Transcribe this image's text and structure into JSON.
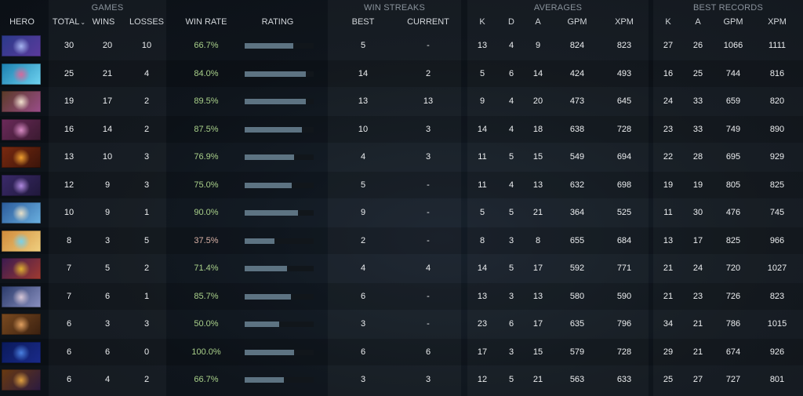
{
  "groups": {
    "games": "GAMES",
    "win_streaks": "WIN STREAKS",
    "averages": "AVERAGES",
    "best_records": "BEST RECORDS"
  },
  "headers": {
    "hero": "HERO",
    "total": "TOTAL",
    "wins": "WINS",
    "losses": "LOSSES",
    "win_rate": "WIN RATE",
    "rating": "RATING",
    "best": "BEST",
    "current": "CURRENT",
    "avg_k": "K",
    "avg_d": "D",
    "avg_a": "A",
    "avg_gpm": "GPM",
    "avg_xpm": "XPM",
    "best_k": "K",
    "best_a": "A",
    "best_gpm": "GPM",
    "best_xpm": "XPM",
    "sort_indicator": "⌄"
  },
  "colors": {
    "win_rate_high": "#a9d08a",
    "win_rate_low": "#d9b2a6",
    "rating_bar": "#5d7382",
    "rating_track": "#11161b"
  },
  "rows": [
    {
      "portrait": {
        "c1": "#2a3a8a",
        "c2": "#a6b4f0",
        "c3": "#5b3a9c"
      },
      "total": "30",
      "wins": "20",
      "losses": "10",
      "win_rate": "66.7%",
      "rating": 0.7,
      "best": "5",
      "current": "-",
      "k": "13",
      "d": "4",
      "a": "9",
      "gpm": "824",
      "xpm": "823",
      "bk": "27",
      "ba": "26",
      "bgpm": "1066",
      "bxpm": "1111"
    },
    {
      "portrait": {
        "c1": "#1b7fb0",
        "c2": "#d46a9c",
        "c3": "#6fd3f0"
      },
      "total": "25",
      "wins": "21",
      "losses": "4",
      "win_rate": "84.0%",
      "rating": 0.89,
      "best": "14",
      "current": "2",
      "k": "5",
      "d": "6",
      "a": "14",
      "gpm": "424",
      "xpm": "493",
      "bk": "16",
      "ba": "25",
      "bgpm": "744",
      "bxpm": "816"
    },
    {
      "portrait": {
        "c1": "#5a3a26",
        "c2": "#f2e2cf",
        "c3": "#9a4d8a"
      },
      "total": "19",
      "wins": "17",
      "losses": "2",
      "win_rate": "89.5%",
      "rating": 0.89,
      "best": "13",
      "current": "13",
      "k": "9",
      "d": "4",
      "a": "20",
      "gpm": "473",
      "xpm": "645",
      "bk": "24",
      "ba": "33",
      "bgpm": "659",
      "bxpm": "820"
    },
    {
      "portrait": {
        "c1": "#6b2a5a",
        "c2": "#d88cc4",
        "c3": "#3a1a30"
      },
      "total": "16",
      "wins": "14",
      "losses": "2",
      "win_rate": "87.5%",
      "rating": 0.83,
      "best": "10",
      "current": "3",
      "k": "14",
      "d": "4",
      "a": "18",
      "gpm": "638",
      "xpm": "728",
      "bk": "23",
      "ba": "33",
      "bgpm": "749",
      "bxpm": "890"
    },
    {
      "portrait": {
        "c1": "#7a2a10",
        "c2": "#f0a030",
        "c3": "#3a140a"
      },
      "total": "13",
      "wins": "10",
      "losses": "3",
      "win_rate": "76.9%",
      "rating": 0.71,
      "best": "4",
      "current": "3",
      "k": "11",
      "d": "5",
      "a": "15",
      "gpm": "549",
      "xpm": "694",
      "bk": "22",
      "ba": "28",
      "bgpm": "695",
      "bxpm": "929"
    },
    {
      "portrait": {
        "c1": "#3a2a6a",
        "c2": "#b08ae0",
        "c3": "#20183a"
      },
      "total": "12",
      "wins": "9",
      "losses": "3",
      "win_rate": "75.0%",
      "rating": 0.68,
      "best": "5",
      "current": "-",
      "k": "11",
      "d": "4",
      "a": "13",
      "gpm": "632",
      "xpm": "698",
      "bk": "19",
      "ba": "19",
      "bgpm": "805",
      "bxpm": "825"
    },
    {
      "portrait": {
        "c1": "#2a5a9a",
        "c2": "#e8e0c8",
        "c3": "#6ab0e0"
      },
      "total": "10",
      "wins": "9",
      "losses": "1",
      "win_rate": "90.0%",
      "rating": 0.77,
      "best": "9",
      "current": "-",
      "k": "5",
      "d": "5",
      "a": "21",
      "gpm": "364",
      "xpm": "525",
      "bk": "11",
      "ba": "30",
      "bgpm": "476",
      "bxpm": "745"
    },
    {
      "portrait": {
        "c1": "#d08a3a",
        "c2": "#7ad0e8",
        "c3": "#f0d080"
      },
      "total": "8",
      "wins": "3",
      "losses": "5",
      "win_rate": "37.5%",
      "rating": 0.43,
      "best": "2",
      "current": "-",
      "k": "8",
      "d": "3",
      "a": "8",
      "gpm": "655",
      "xpm": "684",
      "bk": "13",
      "ba": "17",
      "bgpm": "825",
      "bxpm": "966"
    },
    {
      "portrait": {
        "c1": "#3a1a50",
        "c2": "#e0b030",
        "c3": "#a03a30"
      },
      "total": "7",
      "wins": "5",
      "losses": "2",
      "win_rate": "71.4%",
      "rating": 0.61,
      "best": "4",
      "current": "4",
      "k": "14",
      "d": "5",
      "a": "17",
      "gpm": "592",
      "xpm": "771",
      "bk": "21",
      "ba": "24",
      "bgpm": "720",
      "bxpm": "1027"
    },
    {
      "portrait": {
        "c1": "#2a3a6a",
        "c2": "#d8c8d8",
        "c3": "#8a90c0"
      },
      "total": "7",
      "wins": "6",
      "losses": "1",
      "win_rate": "85.7%",
      "rating": 0.67,
      "best": "6",
      "current": "-",
      "k": "13",
      "d": "3",
      "a": "13",
      "gpm": "580",
      "xpm": "590",
      "bk": "21",
      "ba": "23",
      "bgpm": "726",
      "bxpm": "823"
    },
    {
      "portrait": {
        "c1": "#7a4a20",
        "c2": "#e0a060",
        "c3": "#3a2010"
      },
      "total": "6",
      "wins": "3",
      "losses": "3",
      "win_rate": "50.0%",
      "rating": 0.5,
      "best": "3",
      "current": "-",
      "k": "23",
      "d": "6",
      "a": "17",
      "gpm": "635",
      "xpm": "796",
      "bk": "34",
      "ba": "21",
      "bgpm": "786",
      "bxpm": "1015"
    },
    {
      "portrait": {
        "c1": "#0a1a5a",
        "c2": "#4a80e0",
        "c3": "#1a2a8a"
      },
      "total": "6",
      "wins": "6",
      "losses": "0",
      "win_rate": "100.0%",
      "rating": 0.72,
      "best": "6",
      "current": "6",
      "k": "17",
      "d": "3",
      "a": "15",
      "gpm": "579",
      "xpm": "728",
      "bk": "29",
      "ba": "21",
      "bgpm": "674",
      "bxpm": "926"
    },
    {
      "portrait": {
        "c1": "#6a3a10",
        "c2": "#e0a040",
        "c3": "#2a1a40"
      },
      "total": "6",
      "wins": "4",
      "losses": "2",
      "win_rate": "66.7%",
      "rating": 0.57,
      "best": "3",
      "current": "3",
      "k": "12",
      "d": "5",
      "a": "21",
      "gpm": "563",
      "xpm": "633",
      "bk": "25",
      "ba": "27",
      "bgpm": "727",
      "bxpm": "801"
    }
  ]
}
